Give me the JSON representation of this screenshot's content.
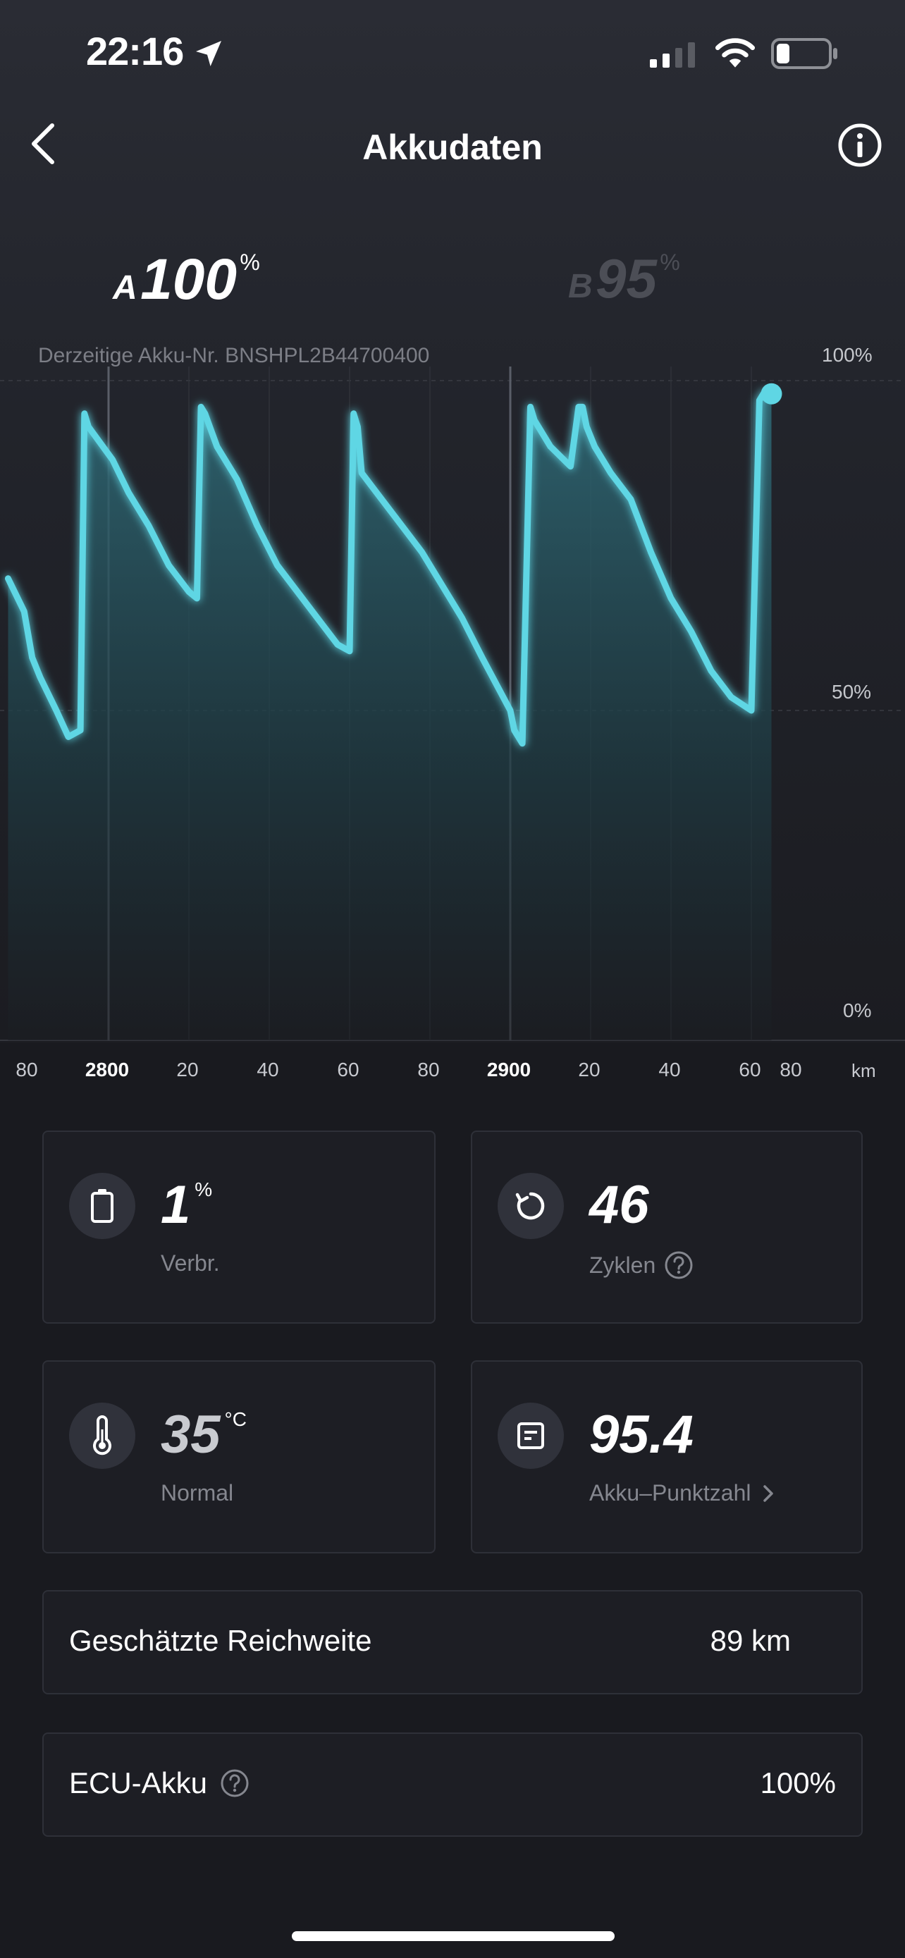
{
  "status_bar": {
    "time": "22:16"
  },
  "header": {
    "title": "Akkudaten"
  },
  "battery_tabs": [
    {
      "letter": "A",
      "value": "100",
      "unit": "%",
      "active": true
    },
    {
      "letter": "B",
      "value": "95",
      "unit": "%",
      "active": false
    }
  ],
  "akku_nr": "Derzeitige Akku-Nr. BNSHPL2B44700400",
  "chart_axis": {
    "top": "100%",
    "mid": "50%",
    "bottom": "0%",
    "x_unit": "km"
  },
  "x_tick_labels": [
    "80",
    "2800",
    "20",
    "40",
    "60",
    "80",
    "2900",
    "20",
    "40",
    "60",
    "80"
  ],
  "chart_data": {
    "type": "line",
    "xlabel": "km",
    "ylim": [
      0,
      100
    ],
    "y_ticks": [
      "0%",
      "50%",
      "100%"
    ],
    "x_ticks": [
      "80",
      "2800",
      "20",
      "40",
      "60",
      "80",
      "2900",
      "20",
      "40",
      "60",
      "80"
    ],
    "x": [
      2775,
      2779,
      2781,
      2783,
      2787,
      2790,
      2793,
      2794,
      2795,
      2801,
      2805,
      2810,
      2815,
      2820,
      2822,
      2823,
      2824,
      2827,
      2832,
      2837,
      2842,
      2847,
      2852,
      2857,
      2860,
      2861,
      2862,
      2863,
      2868,
      2873,
      2878,
      2883,
      2888,
      2893,
      2900,
      2901,
      2902,
      2903,
      2905,
      2906,
      2907,
      2910,
      2915,
      2917,
      2918,
      2919,
      2921,
      2925,
      2930,
      2935,
      2940,
      2945,
      2950,
      2955,
      2960,
      2962,
      2963,
      2964,
      2965
    ],
    "values": [
      70,
      65,
      58,
      55,
      50,
      46,
      47,
      95,
      93,
      88,
      83,
      78,
      72,
      68,
      67,
      96,
      95,
      90,
      85,
      78,
      72,
      68,
      64,
      60,
      59,
      95,
      93,
      86,
      82,
      78,
      74,
      69,
      64,
      58,
      50,
      47,
      46,
      45,
      96,
      94,
      93,
      90,
      87,
      96,
      96,
      93,
      90,
      86,
      82,
      74,
      67,
      62,
      56,
      52,
      50,
      97,
      98,
      98,
      98
    ]
  },
  "cards": {
    "consumption": {
      "value": "1",
      "unit": "%",
      "label": "Verbr."
    },
    "cycles": {
      "value": "46",
      "label": "Zyklen"
    },
    "temperature": {
      "value": "35",
      "unit": "°C",
      "label": "Normal"
    },
    "score": {
      "value": "95.4",
      "label": "Akku–Punktzahl"
    }
  },
  "range": {
    "label": "Geschätzte Reichweite",
    "value": "89 km"
  },
  "ecu": {
    "label": "ECU-Akku",
    "value": "100%"
  },
  "colors": {
    "accent": "#5fd6e4",
    "background": "#191a1f",
    "card": "#1d1e24"
  }
}
